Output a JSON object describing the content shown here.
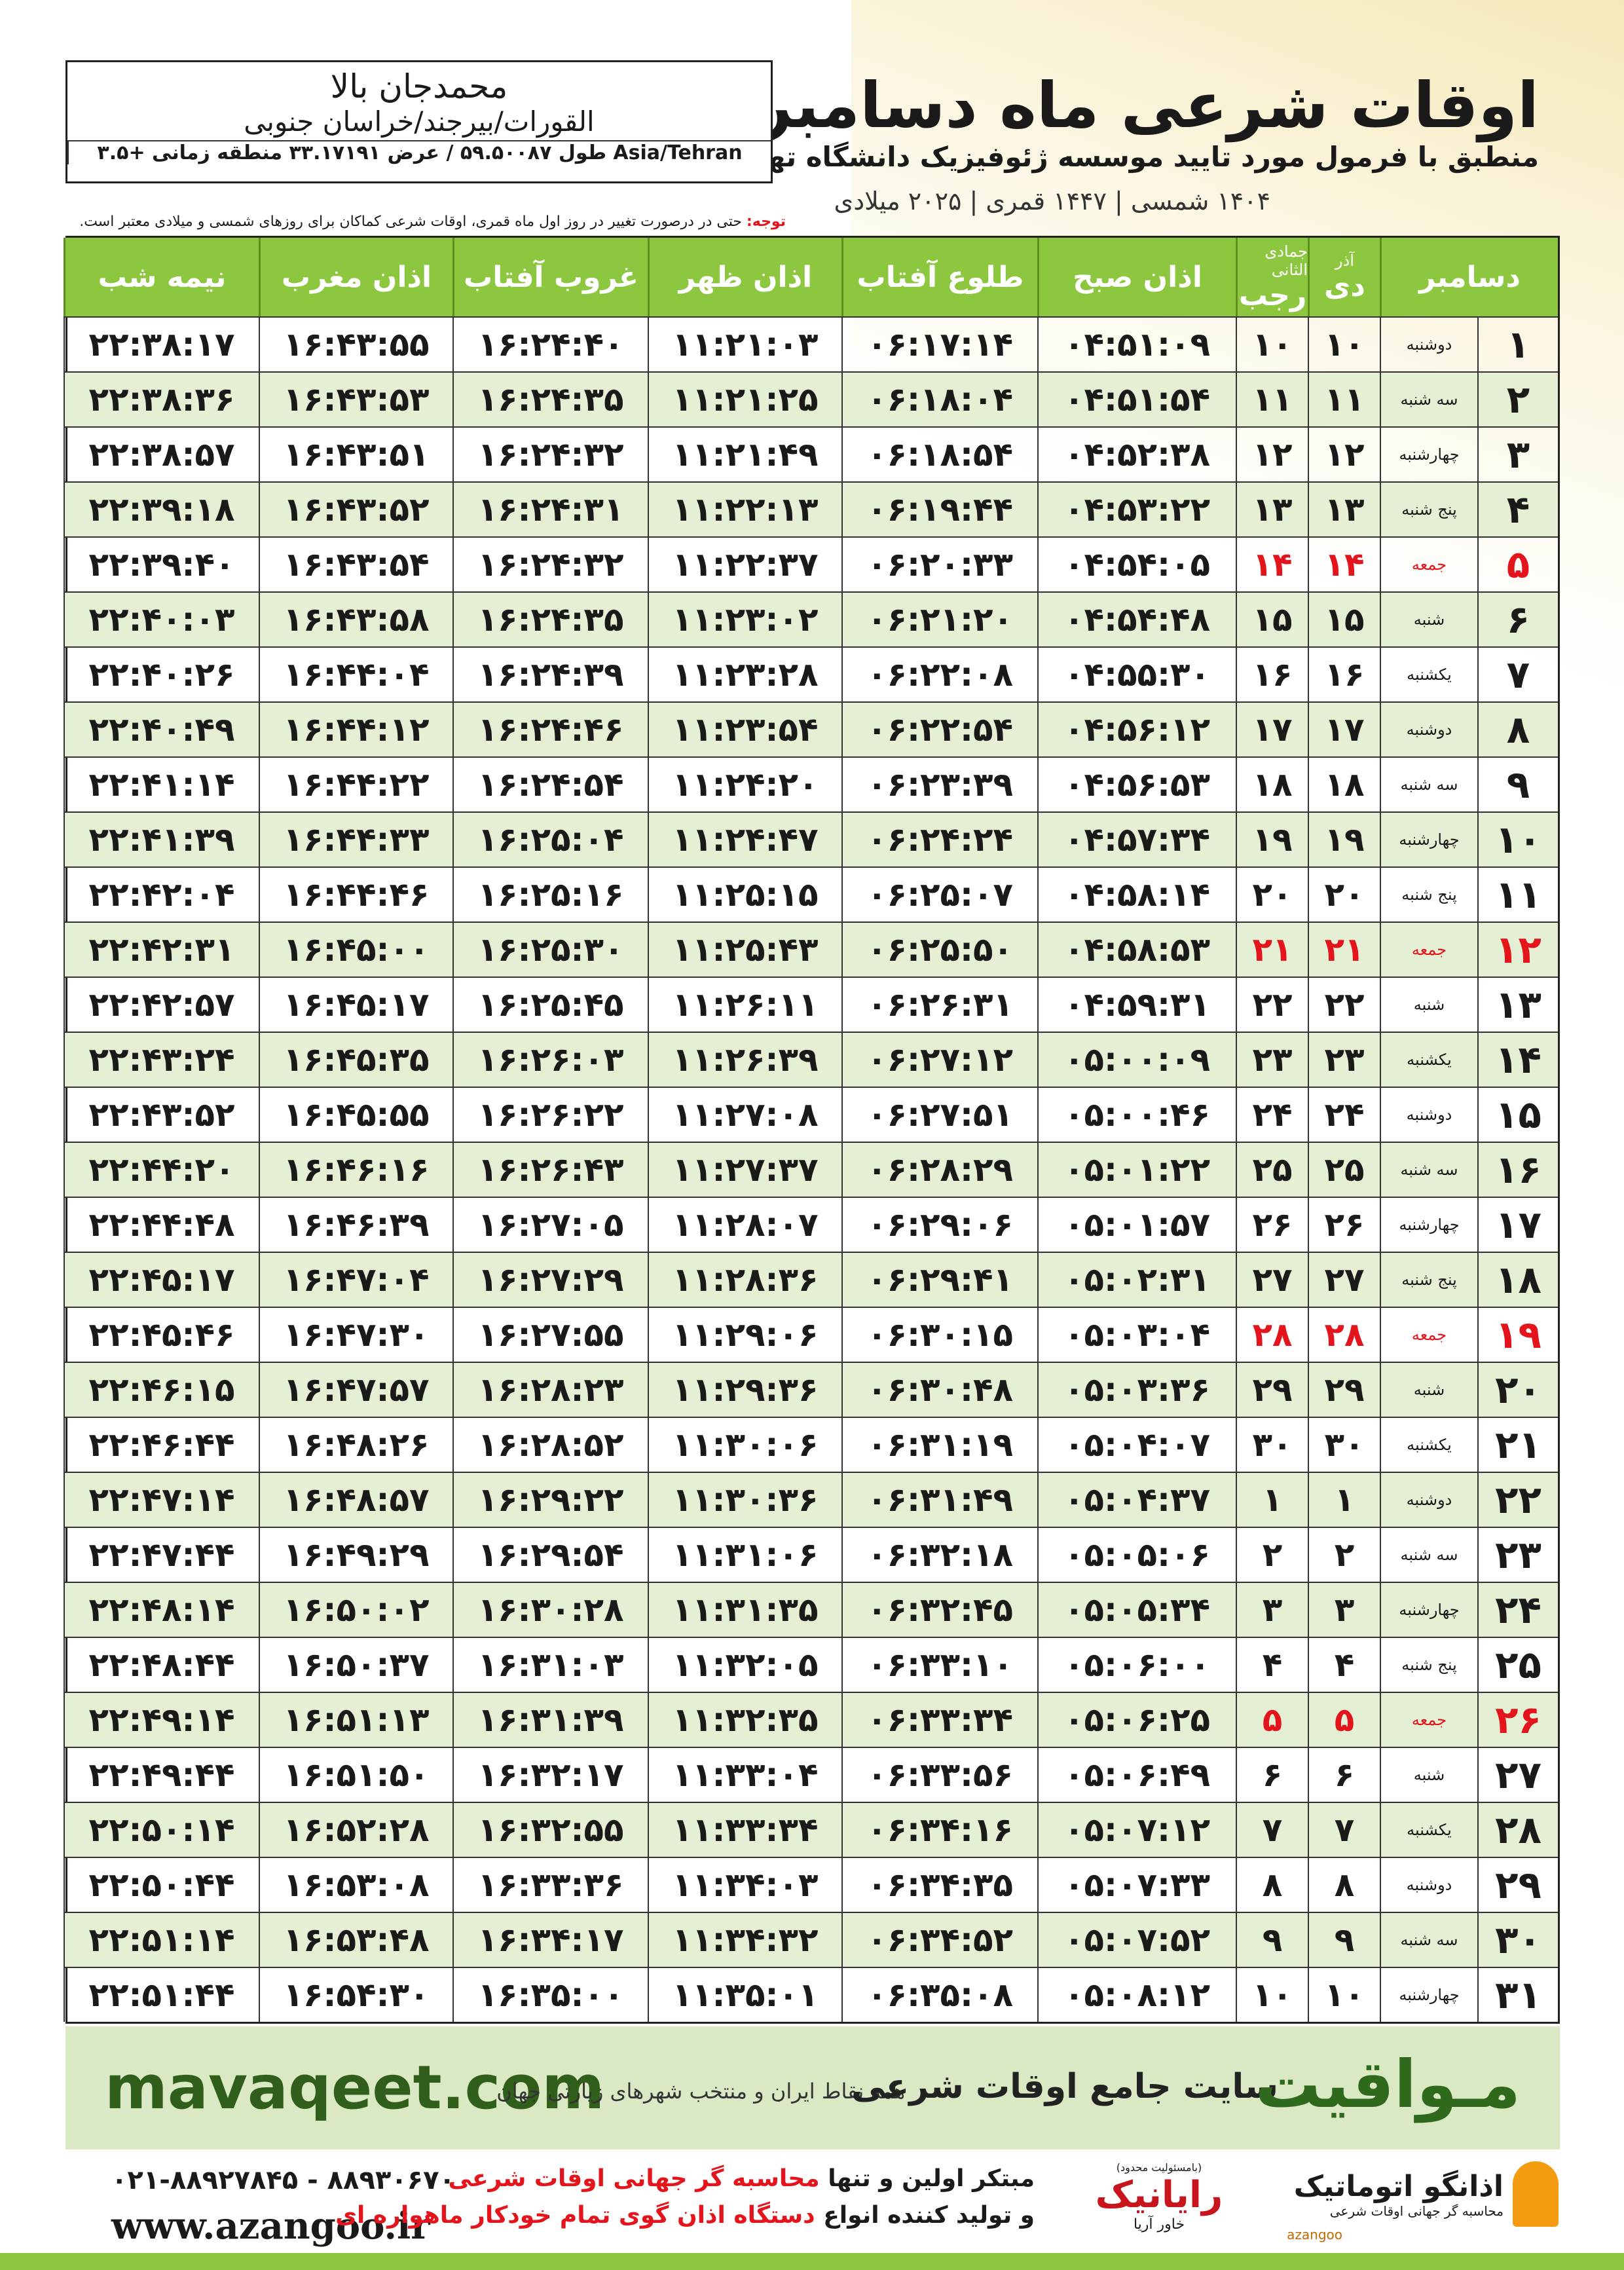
{
  "header": {
    "title": "اوقات شرعی ماه دسامبر",
    "subtitle": "منطبق با فرمول مورد تایید موسسه ژئوفیزیک دانشگاه تهران",
    "dates": "۱۴۰۴ شمسی | ۱۴۴۷ قمری | ۲۰۲۵ میلادی"
  },
  "location": {
    "name": "محمدجان بالا",
    "path": "القورات/بیرجند/خراسان جنوبی",
    "coords": "طول ۵۹.۵۰۰۸۷ / عرض ۳۳.۱۷۱۹۱ منطقه زمانی +۳.۵ Asia/Tehran"
  },
  "note": {
    "label": "توجه:",
    "text": "حتی در درصورت تغییر در روز اول ماه قمری، اوقات شرعی کماکان برای روزهای شمسی و میلادی معتبر است."
  },
  "table": {
    "holiday_color": "#e3141c",
    "headers": [
      {
        "label": "دسامبر"
      },
      {
        "top": "آذر",
        "label": "دی"
      },
      {
        "top": "جمادی الثانی",
        "label": "رجب"
      },
      {
        "label": "اذان صبح"
      },
      {
        "label": "طلوع آفتاب"
      },
      {
        "label": "اذان ظهر"
      },
      {
        "label": "غروب آفتاب"
      },
      {
        "label": "اذان مغرب"
      },
      {
        "label": "نیمه شب"
      }
    ],
    "rows": [
      {
        "cells": [
          "۱",
          "دوشنبه",
          "۱۰",
          "۱۰",
          "۰۴:۵۱:۰۹",
          "۰۶:۱۷:۱۴",
          "۱۱:۲۱:۰۳",
          "۱۶:۲۴:۴۰",
          "۱۶:۴۳:۵۵",
          "۲۲:۳۸:۱۷"
        ]
      },
      {
        "cells": [
          "۲",
          "سه شنبه",
          "۱۱",
          "۱۱",
          "۰۴:۵۱:۵۴",
          "۰۶:۱۸:۰۴",
          "۱۱:۲۱:۲۵",
          "۱۶:۲۴:۳۵",
          "۱۶:۴۳:۵۳",
          "۲۲:۳۸:۳۶"
        ]
      },
      {
        "cells": [
          "۳",
          "چهارشنبه",
          "۱۲",
          "۱۲",
          "۰۴:۵۲:۳۸",
          "۰۶:۱۸:۵۴",
          "۱۱:۲۱:۴۹",
          "۱۶:۲۴:۳۲",
          "۱۶:۴۳:۵۱",
          "۲۲:۳۸:۵۷"
        ]
      },
      {
        "cells": [
          "۴",
          "پنج شنبه",
          "۱۳",
          "۱۳",
          "۰۴:۵۳:۲۲",
          "۰۶:۱۹:۴۴",
          "۱۱:۲۲:۱۳",
          "۱۶:۲۴:۳۱",
          "۱۶:۴۳:۵۲",
          "۲۲:۳۹:۱۸"
        ]
      },
      {
        "cells": [
          "۵",
          "جمعه",
          "۱۴",
          "۱۴",
          "۰۴:۵۴:۰۵",
          "۰۶:۲۰:۳۳",
          "۱۱:۲۲:۳۷",
          "۱۶:۲۴:۳۲",
          "۱۶:۴۳:۵۴",
          "۲۲:۳۹:۴۰"
        ],
        "holiday": true
      },
      {
        "cells": [
          "۶",
          "شنبه",
          "۱۵",
          "۱۵",
          "۰۴:۵۴:۴۸",
          "۰۶:۲۱:۲۰",
          "۱۱:۲۳:۰۲",
          "۱۶:۲۴:۳۵",
          "۱۶:۴۳:۵۸",
          "۲۲:۴۰:۰۳"
        ]
      },
      {
        "cells": [
          "۷",
          "یکشنبه",
          "۱۶",
          "۱۶",
          "۰۴:۵۵:۳۰",
          "۰۶:۲۲:۰۸",
          "۱۱:۲۳:۲۸",
          "۱۶:۲۴:۳۹",
          "۱۶:۴۴:۰۴",
          "۲۲:۴۰:۲۶"
        ]
      },
      {
        "cells": [
          "۸",
          "دوشنبه",
          "۱۷",
          "۱۷",
          "۰۴:۵۶:۱۲",
          "۰۶:۲۲:۵۴",
          "۱۱:۲۳:۵۴",
          "۱۶:۲۴:۴۶",
          "۱۶:۴۴:۱۲",
          "۲۲:۴۰:۴۹"
        ]
      },
      {
        "cells": [
          "۹",
          "سه شنبه",
          "۱۸",
          "۱۸",
          "۰۴:۵۶:۵۳",
          "۰۶:۲۳:۳۹",
          "۱۱:۲۴:۲۰",
          "۱۶:۲۴:۵۴",
          "۱۶:۴۴:۲۲",
          "۲۲:۴۱:۱۴"
        ]
      },
      {
        "cells": [
          "۱۰",
          "چهارشنبه",
          "۱۹",
          "۱۹",
          "۰۴:۵۷:۳۴",
          "۰۶:۲۴:۲۴",
          "۱۱:۲۴:۴۷",
          "۱۶:۲۵:۰۴",
          "۱۶:۴۴:۳۳",
          "۲۲:۴۱:۳۹"
        ]
      },
      {
        "cells": [
          "۱۱",
          "پنج شنبه",
          "۲۰",
          "۲۰",
          "۰۴:۵۸:۱۴",
          "۰۶:۲۵:۰۷",
          "۱۱:۲۵:۱۵",
          "۱۶:۲۵:۱۶",
          "۱۶:۴۴:۴۶",
          "۲۲:۴۲:۰۴"
        ]
      },
      {
        "cells": [
          "۱۲",
          "جمعه",
          "۲۱",
          "۲۱",
          "۰۴:۵۸:۵۳",
          "۰۶:۲۵:۵۰",
          "۱۱:۲۵:۴۳",
          "۱۶:۲۵:۳۰",
          "۱۶:۴۵:۰۰",
          "۲۲:۴۲:۳۱"
        ],
        "holiday": true
      },
      {
        "cells": [
          "۱۳",
          "شنبه",
          "۲۲",
          "۲۲",
          "۰۴:۵۹:۳۱",
          "۰۶:۲۶:۳۱",
          "۱۱:۲۶:۱۱",
          "۱۶:۲۵:۴۵",
          "۱۶:۴۵:۱۷",
          "۲۲:۴۲:۵۷"
        ]
      },
      {
        "cells": [
          "۱۴",
          "یکشنبه",
          "۲۳",
          "۲۳",
          "۰۵:۰۰:۰۹",
          "۰۶:۲۷:۱۲",
          "۱۱:۲۶:۳۹",
          "۱۶:۲۶:۰۳",
          "۱۶:۴۵:۳۵",
          "۲۲:۴۳:۲۴"
        ]
      },
      {
        "cells": [
          "۱۵",
          "دوشنبه",
          "۲۴",
          "۲۴",
          "۰۵:۰۰:۴۶",
          "۰۶:۲۷:۵۱",
          "۱۱:۲۷:۰۸",
          "۱۶:۲۶:۲۲",
          "۱۶:۴۵:۵۵",
          "۲۲:۴۳:۵۲"
        ]
      },
      {
        "cells": [
          "۱۶",
          "سه شنبه",
          "۲۵",
          "۲۵",
          "۰۵:۰۱:۲۲",
          "۰۶:۲۸:۲۹",
          "۱۱:۲۷:۳۷",
          "۱۶:۲۶:۴۳",
          "۱۶:۴۶:۱۶",
          "۲۲:۴۴:۲۰"
        ]
      },
      {
        "cells": [
          "۱۷",
          "چهارشنبه",
          "۲۶",
          "۲۶",
          "۰۵:۰۱:۵۷",
          "۰۶:۲۹:۰۶",
          "۱۱:۲۸:۰۷",
          "۱۶:۲۷:۰۵",
          "۱۶:۴۶:۳۹",
          "۲۲:۴۴:۴۸"
        ]
      },
      {
        "cells": [
          "۱۸",
          "پنج شنبه",
          "۲۷",
          "۲۷",
          "۰۵:۰۲:۳۱",
          "۰۶:۲۹:۴۱",
          "۱۱:۲۸:۳۶",
          "۱۶:۲۷:۲۹",
          "۱۶:۴۷:۰۴",
          "۲۲:۴۵:۱۷"
        ]
      },
      {
        "cells": [
          "۱۹",
          "جمعه",
          "۲۸",
          "۲۸",
          "۰۵:۰۳:۰۴",
          "۰۶:۳۰:۱۵",
          "۱۱:۲۹:۰۶",
          "۱۶:۲۷:۵۵",
          "۱۶:۴۷:۳۰",
          "۲۲:۴۵:۴۶"
        ],
        "holiday": true
      },
      {
        "cells": [
          "۲۰",
          "شنبه",
          "۲۹",
          "۲۹",
          "۰۵:۰۳:۳۶",
          "۰۶:۳۰:۴۸",
          "۱۱:۲۹:۳۶",
          "۱۶:۲۸:۲۳",
          "۱۶:۴۷:۵۷",
          "۲۲:۴۶:۱۵"
        ]
      },
      {
        "cells": [
          "۲۱",
          "یکشنبه",
          "۳۰",
          "۳۰",
          "۰۵:۰۴:۰۷",
          "۰۶:۳۱:۱۹",
          "۱۱:۳۰:۰۶",
          "۱۶:۲۸:۵۲",
          "۱۶:۴۸:۲۶",
          "۲۲:۴۶:۴۴"
        ]
      },
      {
        "cells": [
          "۲۲",
          "دوشنبه",
          "۱",
          "۱",
          "۰۵:۰۴:۳۷",
          "۰۶:۳۱:۴۹",
          "۱۱:۳۰:۳۶",
          "۱۶:۲۹:۲۲",
          "۱۶:۴۸:۵۷",
          "۲۲:۴۷:۱۴"
        ]
      },
      {
        "cells": [
          "۲۳",
          "سه شنبه",
          "۲",
          "۲",
          "۰۵:۰۵:۰۶",
          "۰۶:۳۲:۱۸",
          "۱۱:۳۱:۰۶",
          "۱۶:۲۹:۵۴",
          "۱۶:۴۹:۲۹",
          "۲۲:۴۷:۴۴"
        ]
      },
      {
        "cells": [
          "۲۴",
          "چهارشنبه",
          "۳",
          "۳",
          "۰۵:۰۵:۳۴",
          "۰۶:۳۲:۴۵",
          "۱۱:۳۱:۳۵",
          "۱۶:۳۰:۲۸",
          "۱۶:۵۰:۰۲",
          "۲۲:۴۸:۱۴"
        ]
      },
      {
        "cells": [
          "۲۵",
          "پنج شنبه",
          "۴",
          "۴",
          "۰۵:۰۶:۰۰",
          "۰۶:۳۳:۱۰",
          "۱۱:۳۲:۰۵",
          "۱۶:۳۱:۰۳",
          "۱۶:۵۰:۳۷",
          "۲۲:۴۸:۴۴"
        ]
      },
      {
        "cells": [
          "۲۶",
          "جمعه",
          "۵",
          "۵",
          "۰۵:۰۶:۲۵",
          "۰۶:۳۳:۳۴",
          "۱۱:۳۲:۳۵",
          "۱۶:۳۱:۳۹",
          "۱۶:۵۱:۱۳",
          "۲۲:۴۹:۱۴"
        ],
        "holiday": true
      },
      {
        "cells": [
          "۲۷",
          "شنبه",
          "۶",
          "۶",
          "۰۵:۰۶:۴۹",
          "۰۶:۳۳:۵۶",
          "۱۱:۳۳:۰۴",
          "۱۶:۳۲:۱۷",
          "۱۶:۵۱:۵۰",
          "۲۲:۴۹:۴۴"
        ]
      },
      {
        "cells": [
          "۲۸",
          "یکشنبه",
          "۷",
          "۷",
          "۰۵:۰۷:۱۲",
          "۰۶:۳۴:۱۶",
          "۱۱:۳۳:۳۴",
          "۱۶:۳۲:۵۵",
          "۱۶:۵۲:۲۸",
          "۲۲:۵۰:۱۴"
        ]
      },
      {
        "cells": [
          "۲۹",
          "دوشنبه",
          "۸",
          "۸",
          "۰۵:۰۷:۳۳",
          "۰۶:۳۴:۳۵",
          "۱۱:۳۴:۰۳",
          "۱۶:۳۳:۳۶",
          "۱۶:۵۳:۰۸",
          "۲۲:۵۰:۴۴"
        ]
      },
      {
        "cells": [
          "۳۰",
          "سه شنبه",
          "۹",
          "۹",
          "۰۵:۰۷:۵۲",
          "۰۶:۳۴:۵۲",
          "۱۱:۳۴:۳۲",
          "۱۶:۳۴:۱۷",
          "۱۶:۵۳:۴۸",
          "۲۲:۵۱:۱۴"
        ]
      },
      {
        "cells": [
          "۳۱",
          "چهارشنبه",
          "۱۰",
          "۱۰",
          "۰۵:۰۸:۱۲",
          "۰۶:۳۵:۰۸",
          "۱۱:۳۵:۰۱",
          "۱۶:۳۵:۰۰",
          "۱۶:۵۴:۳۰",
          "۲۲:۵۱:۴۴"
        ]
      }
    ]
  },
  "banner": {
    "site": "mavaqeet.com",
    "brand": "مـواقیت",
    "tagline": "سایت جامع اوقات شرعی",
    "coverage": "همه نقاط ایران و منتخب شهرهای زیارتی جهان"
  },
  "footer": {
    "phone": "۰۲۱-۸۸۹۲۷۸۴۵ - ۸۸۹۳۰۶۷۰",
    "web": "www.azangoo.ir",
    "line1_a": "مبتکر اولین و تنها",
    "line1_b": "محاسبه گر جهانی اوقات شرعی",
    "line2_a": "و تولید کننده انواع",
    "line2_b": "دستگاه اذان گوی تمام خودکار ماهواره ای",
    "logo1_note": "(بامسئولیت محدود)",
    "logo1_main": "رایانیک",
    "logo1_sub": "خاور آریا",
    "logo2_main": "اذانگو اتوماتیک",
    "logo2_sub": "محاسبه گر جهانی اوقات شرعی",
    "logo2_latin": "azangoo"
  }
}
